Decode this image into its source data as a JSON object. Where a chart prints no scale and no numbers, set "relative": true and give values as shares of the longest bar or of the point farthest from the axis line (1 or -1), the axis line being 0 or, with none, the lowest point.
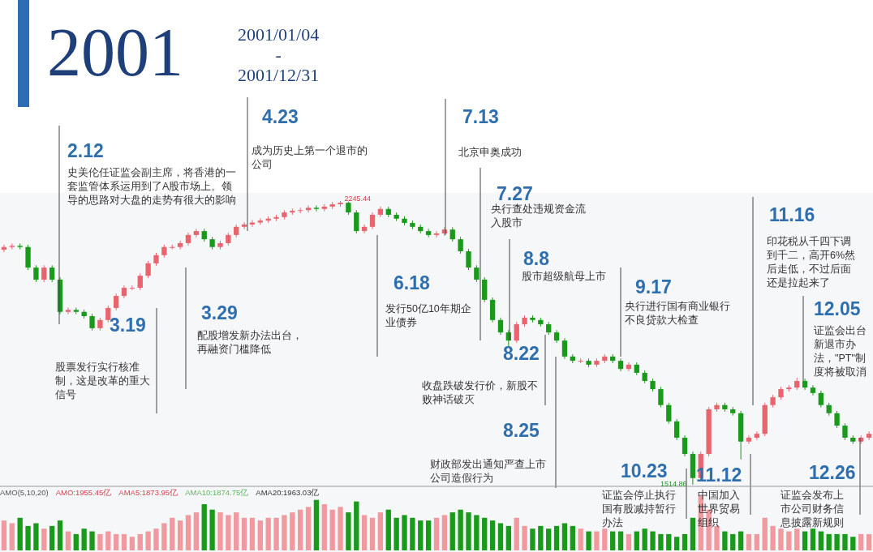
{
  "chart_data": [
    {
      "type": "candlestick",
      "title": "2001",
      "subtitle": "2001/01/04\n-\n2001/12/31",
      "categories": [
        null,
        null,
        null,
        null,
        null,
        null,
        null,
        null,
        null,
        null,
        null,
        null,
        null,
        null,
        null,
        null,
        null,
        null,
        null,
        null,
        null,
        null,
        null,
        null,
        null,
        null,
        null,
        null,
        null,
        null,
        null,
        null,
        null,
        null,
        null,
        null,
        null,
        null,
        null,
        null,
        null,
        null,
        null,
        null,
        null,
        null,
        null,
        null,
        null,
        null,
        null,
        null,
        null,
        null,
        null,
        null,
        null,
        null,
        null,
        null,
        null,
        null,
        null,
        null,
        null,
        null,
        null,
        null,
        null,
        null,
        null,
        null,
        null,
        null,
        null,
        null,
        null,
        null,
        null,
        null,
        null,
        null,
        null,
        null,
        null,
        null,
        null,
        null,
        null,
        null,
        null,
        null,
        null,
        null,
        null,
        null,
        null,
        null,
        null,
        null,
        null,
        null,
        null,
        null,
        null,
        null,
        null,
        null,
        null
      ],
      "ohlc": [
        [
          2120,
          2133,
          2114,
          2127
        ],
        [
          2127,
          2136,
          2121,
          2130
        ],
        [
          2130,
          2136,
          2121,
          2127
        ],
        [
          2127,
          2133,
          2068,
          2074
        ],
        [
          2074,
          2080,
          2037,
          2043
        ],
        [
          2043,
          2080,
          2037,
          2074
        ],
        [
          2074,
          2080,
          2037,
          2043
        ],
        [
          2043,
          2049,
          1954,
          1960
        ],
        [
          1960,
          1971,
          1954,
          1965
        ],
        [
          1965,
          1971,
          1954,
          1960
        ],
        [
          1960,
          1966,
          1943,
          1949
        ],
        [
          1949,
          1955,
          1912,
          1918
        ],
        [
          1918,
          1945,
          1912,
          1939
        ],
        [
          1939,
          1976,
          1933,
          1970
        ],
        [
          1970,
          2007,
          1964,
          2001
        ],
        [
          2001,
          2028,
          1995,
          2022
        ],
        [
          2022,
          2028,
          2016,
          2022
        ],
        [
          2022,
          2059,
          2016,
          2053
        ],
        [
          2053,
          2091,
          2047,
          2085
        ],
        [
          2085,
          2112,
          2079,
          2106
        ],
        [
          2106,
          2133,
          2100,
          2127
        ],
        [
          2127,
          2133,
          2121,
          2127
        ],
        [
          2127,
          2143,
          2121,
          2137
        ],
        [
          2137,
          2164,
          2131,
          2158
        ],
        [
          2158,
          2174,
          2152,
          2168
        ],
        [
          2168,
          2174,
          2141,
          2147
        ],
        [
          2147,
          2153,
          2121,
          2127
        ],
        [
          2127,
          2143,
          2121,
          2137
        ],
        [
          2137,
          2164,
          2131,
          2158
        ],
        [
          2158,
          2185,
          2152,
          2179
        ],
        [
          2179,
          2191,
          2173,
          2185
        ],
        [
          2185,
          2196,
          2179,
          2190
        ],
        [
          2190,
          2201,
          2184,
          2195
        ],
        [
          2195,
          2206,
          2189,
          2200
        ],
        [
          2200,
          2210,
          2194,
          2204
        ],
        [
          2204,
          2222,
          2198,
          2216
        ],
        [
          2216,
          2226,
          2210,
          2220
        ],
        [
          2220,
          2228,
          2214,
          2222
        ],
        [
          2222,
          2234,
          2216,
          2228
        ],
        [
          2228,
          2234,
          2219,
          2225
        ],
        [
          2225,
          2237,
          2219,
          2231
        ],
        [
          2231,
          2243,
          2225,
          2237
        ],
        [
          2237,
          2245.44,
          2231,
          2241
        ],
        [
          2241,
          2244,
          2210,
          2216
        ],
        [
          2216,
          2222,
          2162,
          2168
        ],
        [
          2168,
          2185,
          2162,
          2179
        ],
        [
          2179,
          2216,
          2173,
          2210
        ],
        [
          2210,
          2231,
          2204,
          2225
        ],
        [
          2225,
          2231,
          2204,
          2210
        ],
        [
          2210,
          2216,
          2194,
          2200
        ],
        [
          2200,
          2206,
          2183,
          2189
        ],
        [
          2189,
          2195,
          2173,
          2179
        ],
        [
          2179,
          2185,
          2162,
          2168
        ],
        [
          2168,
          2174,
          2152,
          2158
        ],
        [
          2158,
          2168,
          2152,
          2162
        ],
        [
          2162,
          2178,
          2156,
          2172
        ],
        [
          2172,
          2178,
          2141,
          2147
        ],
        [
          2147,
          2153,
          2110,
          2116
        ],
        [
          2116,
          2122,
          2068,
          2074
        ],
        [
          2074,
          2080,
          2037,
          2043
        ],
        [
          2043,
          2049,
          1985,
          1991
        ],
        [
          1991,
          1997,
          1933,
          1939
        ],
        [
          1939,
          1945,
          1901,
          1907
        ],
        [
          1907,
          1913,
          1870,
          1886
        ],
        [
          1886,
          1934,
          1880,
          1928
        ],
        [
          1928,
          1951,
          1922,
          1945
        ],
        [
          1945,
          1951,
          1933,
          1939
        ],
        [
          1939,
          1945,
          1922,
          1928
        ],
        [
          1928,
          1934,
          1901,
          1907
        ],
        [
          1907,
          1913,
          1880,
          1886
        ],
        [
          1886,
          1892,
          1839,
          1845
        ],
        [
          1845,
          1851,
          1828,
          1834
        ],
        [
          1834,
          1840,
          1828,
          1834
        ],
        [
          1834,
          1840,
          1818,
          1824
        ],
        [
          1824,
          1840,
          1818,
          1834
        ],
        [
          1834,
          1851,
          1828,
          1845
        ],
        [
          1845,
          1851,
          1828,
          1834
        ],
        [
          1834,
          1840,
          1807,
          1813
        ],
        [
          1813,
          1830,
          1807,
          1824
        ],
        [
          1824,
          1830,
          1797,
          1803
        ],
        [
          1803,
          1809,
          1776,
          1782
        ],
        [
          1782,
          1788,
          1755,
          1761
        ],
        [
          1761,
          1767,
          1714,
          1720
        ],
        [
          1720,
          1726,
          1672,
          1678
        ],
        [
          1678,
          1684,
          1630,
          1636
        ],
        [
          1636,
          1642,
          1588,
          1594
        ],
        [
          1594,
          1600,
          1514.86,
          1532
        ],
        [
          1532,
          1600,
          1526,
          1594
        ],
        [
          1594,
          1715,
          1588,
          1709
        ],
        [
          1709,
          1726,
          1703,
          1720
        ],
        [
          1720,
          1726,
          1703,
          1709
        ],
        [
          1709,
          1715,
          1693,
          1699
        ],
        [
          1699,
          1705,
          1580,
          1626
        ],
        [
          1626,
          1642,
          1620,
          1636
        ],
        [
          1636,
          1652,
          1630,
          1646
        ],
        [
          1646,
          1726,
          1640,
          1720
        ],
        [
          1720,
          1746,
          1714,
          1740
        ],
        [
          1740,
          1767,
          1734,
          1761
        ],
        [
          1761,
          1771,
          1755,
          1765
        ],
        [
          1765,
          1790,
          1759,
          1782
        ],
        [
          1782,
          1788,
          1759,
          1765
        ],
        [
          1765,
          1771,
          1745,
          1751
        ],
        [
          1751,
          1757,
          1714,
          1720
        ],
        [
          1720,
          1726,
          1693,
          1699
        ],
        [
          1699,
          1705,
          1661,
          1667
        ],
        [
          1667,
          1673,
          1630,
          1636
        ],
        [
          1636,
          1642,
          1620,
          1626
        ],
        [
          1626,
          1642,
          1620,
          1636
        ],
        [
          1636,
          1652,
          1630,
          1646
        ]
      ],
      "colors": [
        "#e8646e",
        "#e8646e",
        "#1a9a1a",
        "#1a9a1a",
        "#1a9a1a",
        "#e8646e",
        "#1a9a1a",
        "#1a9a1a",
        "#e8646e",
        "#1a9a1a",
        "#1a9a1a",
        "#1a9a1a",
        "#e8646e",
        "#e8646e",
        "#e8646e",
        "#e8646e",
        "#e8646e",
        "#e8646e",
        "#e8646e",
        "#e8646e",
        "#e8646e",
        "#e8646e",
        "#e8646e",
        "#e8646e",
        "#e8646e",
        "#1a9a1a",
        "#1a9a1a",
        "#e8646e",
        "#e8646e",
        "#e8646e",
        "#e8646e",
        "#e8646e",
        "#e8646e",
        "#e8646e",
        "#e8646e",
        "#e8646e",
        "#e8646e",
        "#e8646e",
        "#e8646e",
        "#1a9a1a",
        "#e8646e",
        "#e8646e",
        "#e8646e",
        "#1a9a1a",
        "#1a9a1a",
        "#e8646e",
        "#e8646e",
        "#e8646e",
        "#1a9a1a",
        "#1a9a1a",
        "#1a9a1a",
        "#1a9a1a",
        "#1a9a1a",
        "#1a9a1a",
        "#e8646e",
        "#e8646e",
        "#1a9a1a",
        "#1a9a1a",
        "#1a9a1a",
        "#1a9a1a",
        "#1a9a1a",
        "#1a9a1a",
        "#1a9a1a",
        "#1a9a1a",
        "#e8646e",
        "#e8646e",
        "#1a9a1a",
        "#1a9a1a",
        "#1a9a1a",
        "#1a9a1a",
        "#1a9a1a",
        "#1a9a1a",
        "#e8646e",
        "#1a9a1a",
        "#e8646e",
        "#e8646e",
        "#1a9a1a",
        "#1a9a1a",
        "#e8646e",
        "#1a9a1a",
        "#1a9a1a",
        "#1a9a1a",
        "#1a9a1a",
        "#1a9a1a",
        "#1a9a1a",
        "#1a9a1a",
        "#1a9a1a",
        "#e8646e",
        "#e8646e",
        "#e8646e",
        "#1a9a1a",
        "#1a9a1a",
        "#1a9a1a",
        "#e8646e",
        "#e8646e",
        "#e8646e",
        "#e8646e",
        "#e8646e",
        "#e8646e",
        "#e8646e",
        "#1a9a1a",
        "#1a9a1a",
        "#1a9a1a",
        "#1a9a1a",
        "#1a9a1a",
        "#1a9a1a",
        "#1a9a1a",
        "#e8646e",
        "#e8646e"
      ],
      "annotations": [
        "2.12",
        "史美伦任证监会副主席，将香港的一套监管体系运用到了A股市场上。领导的思路对大盘的走势有很大的影响",
        "4.23",
        "成为历史上第一个退市的公司",
        "7.13",
        "北京申奥成功",
        "7.27",
        "央行查处违规资金流入股市",
        "8.8",
        "股市超级航母上市",
        "9.17",
        "央行进行国有商业银行不良贷款大检查",
        "11.16",
        "印花税从千四下调到千二，高开6%然后走低，不过后面还是拉起来了",
        "12.05",
        "证监会出台新退市办法，\"PT\"制度将被取消",
        "3.19",
        "股票发行实行核准制，这是改革的重大信号",
        "3.29",
        "配股增发新办法出台，再融资门槛降低",
        "6.18",
        "发行50亿10年期企业债券",
        "8.22",
        "收盘跌破发行价，新股不败神话破灭",
        "8.25",
        "财政部发出通知严查上市公司造假行为",
        "10.23",
        "证监会停止执行国有股减持暂行办法",
        "11.12",
        "中国加入世界贸易组织",
        "12.26",
        "证监会发布上市公司财务信息披露新规则",
        "2245.44",
        "1514.86"
      ]
    },
    {
      "type": "bar",
      "relative": true,
      "categories": [
        null,
        null,
        null,
        null,
        null,
        null,
        null,
        null,
        null,
        null,
        null,
        null,
        null,
        null,
        null,
        null,
        null,
        null,
        null,
        null,
        null,
        null,
        null,
        null,
        null,
        null,
        null,
        null,
        null,
        null,
        null,
        null,
        null,
        null,
        null,
        null,
        null,
        null,
        null,
        null,
        null,
        null,
        null,
        null,
        null,
        null,
        null,
        null,
        null,
        null,
        null,
        null,
        null,
        null,
        null,
        null,
        null,
        null,
        null,
        null,
        null,
        null,
        null,
        null,
        null,
        null,
        null,
        null,
        null,
        null,
        null,
        null,
        null,
        null,
        null,
        null,
        null,
        null,
        null,
        null,
        null,
        null,
        null,
        null,
        null,
        null,
        null,
        null,
        null,
        null,
        null,
        null,
        null,
        null,
        null,
        null,
        null,
        null,
        null,
        null,
        null,
        null,
        null,
        null,
        null,
        null,
        null,
        null,
        null
      ],
      "values": [
        0.55,
        0.5,
        0.6,
        0.45,
        0.5,
        0.4,
        0.45,
        0.55,
        0.35,
        0.3,
        0.4,
        0.35,
        0.3,
        0.35,
        0.3,
        0.3,
        0.25,
        0.3,
        0.35,
        0.4,
        0.5,
        0.6,
        0.55,
        0.65,
        0.7,
        0.85,
        0.75,
        0.7,
        0.65,
        0.7,
        0.6,
        0.6,
        0.55,
        0.6,
        0.6,
        0.65,
        0.7,
        0.75,
        0.8,
        0.93,
        0.85,
        0.75,
        0.8,
        0.7,
        0.9,
        0.65,
        0.6,
        0.7,
        0.75,
        0.6,
        0.65,
        0.6,
        0.55,
        0.55,
        0.6,
        0.65,
        0.7,
        0.75,
        0.7,
        0.65,
        0.6,
        0.55,
        0.5,
        0.45,
        0.6,
        0.45,
        0.4,
        0.45,
        0.4,
        0.45,
        0.5,
        0.45,
        0.4,
        0.35,
        0.35,
        0.4,
        0.35,
        0.35,
        0.3,
        0.35,
        0.4,
        0.35,
        0.3,
        0.3,
        0.25,
        0.3,
        0.6,
        1.0,
        0.75,
        0.45,
        0.35,
        0.3,
        0.35,
        0.3,
        0.3,
        0.6,
        0.45,
        0.4,
        0.35,
        0.4,
        0.35,
        0.4,
        0.35,
        0.3,
        0.3,
        0.3,
        0.25,
        0.3,
        0.3
      ],
      "colors": [
        "#f09aa0",
        "#f09aa0",
        "#1a9a1a",
        "#1a9a1a",
        "#1a9a1a",
        "#f09aa0",
        "#1a9a1a",
        "#1a9a1a",
        "#f09aa0",
        "#1a9a1a",
        "#1a9a1a",
        "#1a9a1a",
        "#f09aa0",
        "#f09aa0",
        "#f09aa0",
        "#f09aa0",
        "#f09aa0",
        "#f09aa0",
        "#f09aa0",
        "#f09aa0",
        "#f09aa0",
        "#f09aa0",
        "#f09aa0",
        "#f09aa0",
        "#f09aa0",
        "#1a9a1a",
        "#1a9a1a",
        "#f09aa0",
        "#f09aa0",
        "#f09aa0",
        "#f09aa0",
        "#f09aa0",
        "#f09aa0",
        "#f09aa0",
        "#f09aa0",
        "#f09aa0",
        "#f09aa0",
        "#f09aa0",
        "#f09aa0",
        "#1a9a1a",
        "#f09aa0",
        "#f09aa0",
        "#f09aa0",
        "#1a9a1a",
        "#1a9a1a",
        "#f09aa0",
        "#f09aa0",
        "#f09aa0",
        "#1a9a1a",
        "#1a9a1a",
        "#1a9a1a",
        "#1a9a1a",
        "#1a9a1a",
        "#1a9a1a",
        "#f09aa0",
        "#f09aa0",
        "#1a9a1a",
        "#1a9a1a",
        "#1a9a1a",
        "#1a9a1a",
        "#1a9a1a",
        "#1a9a1a",
        "#1a9a1a",
        "#1a9a1a",
        "#f09aa0",
        "#f09aa0",
        "#1a9a1a",
        "#1a9a1a",
        "#1a9a1a",
        "#1a9a1a",
        "#1a9a1a",
        "#1a9a1a",
        "#f09aa0",
        "#1a9a1a",
        "#f09aa0",
        "#f09aa0",
        "#1a9a1a",
        "#1a9a1a",
        "#f09aa0",
        "#1a9a1a",
        "#1a9a1a",
        "#1a9a1a",
        "#1a9a1a",
        "#1a9a1a",
        "#1a9a1a",
        "#1a9a1a",
        "#1a9a1a",
        "#f09aa0",
        "#f09aa0",
        "#f09aa0",
        "#1a9a1a",
        "#1a9a1a",
        "#1a9a1a",
        "#f09aa0",
        "#f09aa0",
        "#f09aa0",
        "#f09aa0",
        "#f09aa0",
        "#f09aa0",
        "#f09aa0",
        "#1a9a1a",
        "#1a9a1a",
        "#1a9a1a",
        "#1a9a1a",
        "#1a9a1a",
        "#1a9a1a",
        "#1a9a1a",
        "#f09aa0",
        "#f09aa0"
      ],
      "annotations": [
        "AMO(5,10,20)",
        "AMO:1955.45亿",
        "AMA5:1873.95亿",
        "AMA10:1874.75亿",
        "AMA20:1963.03亿"
      ]
    }
  ]
}
